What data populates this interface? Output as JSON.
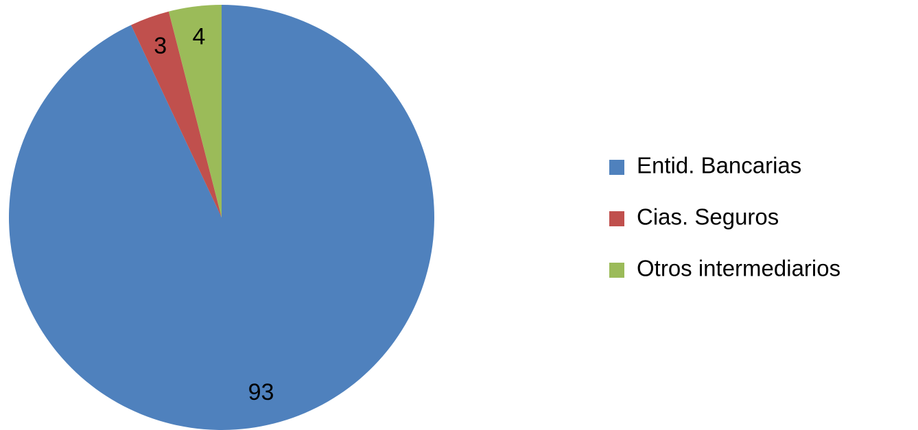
{
  "chart_data": {
    "type": "pie",
    "categories": [
      "Entid. Bancarias",
      "Cias. Seguros",
      "Otros intermediarios"
    ],
    "values": [
      93,
      3,
      4
    ],
    "colors": [
      "#4f81bd",
      "#c0504d",
      "#9bbb59"
    ],
    "legend": "right"
  }
}
